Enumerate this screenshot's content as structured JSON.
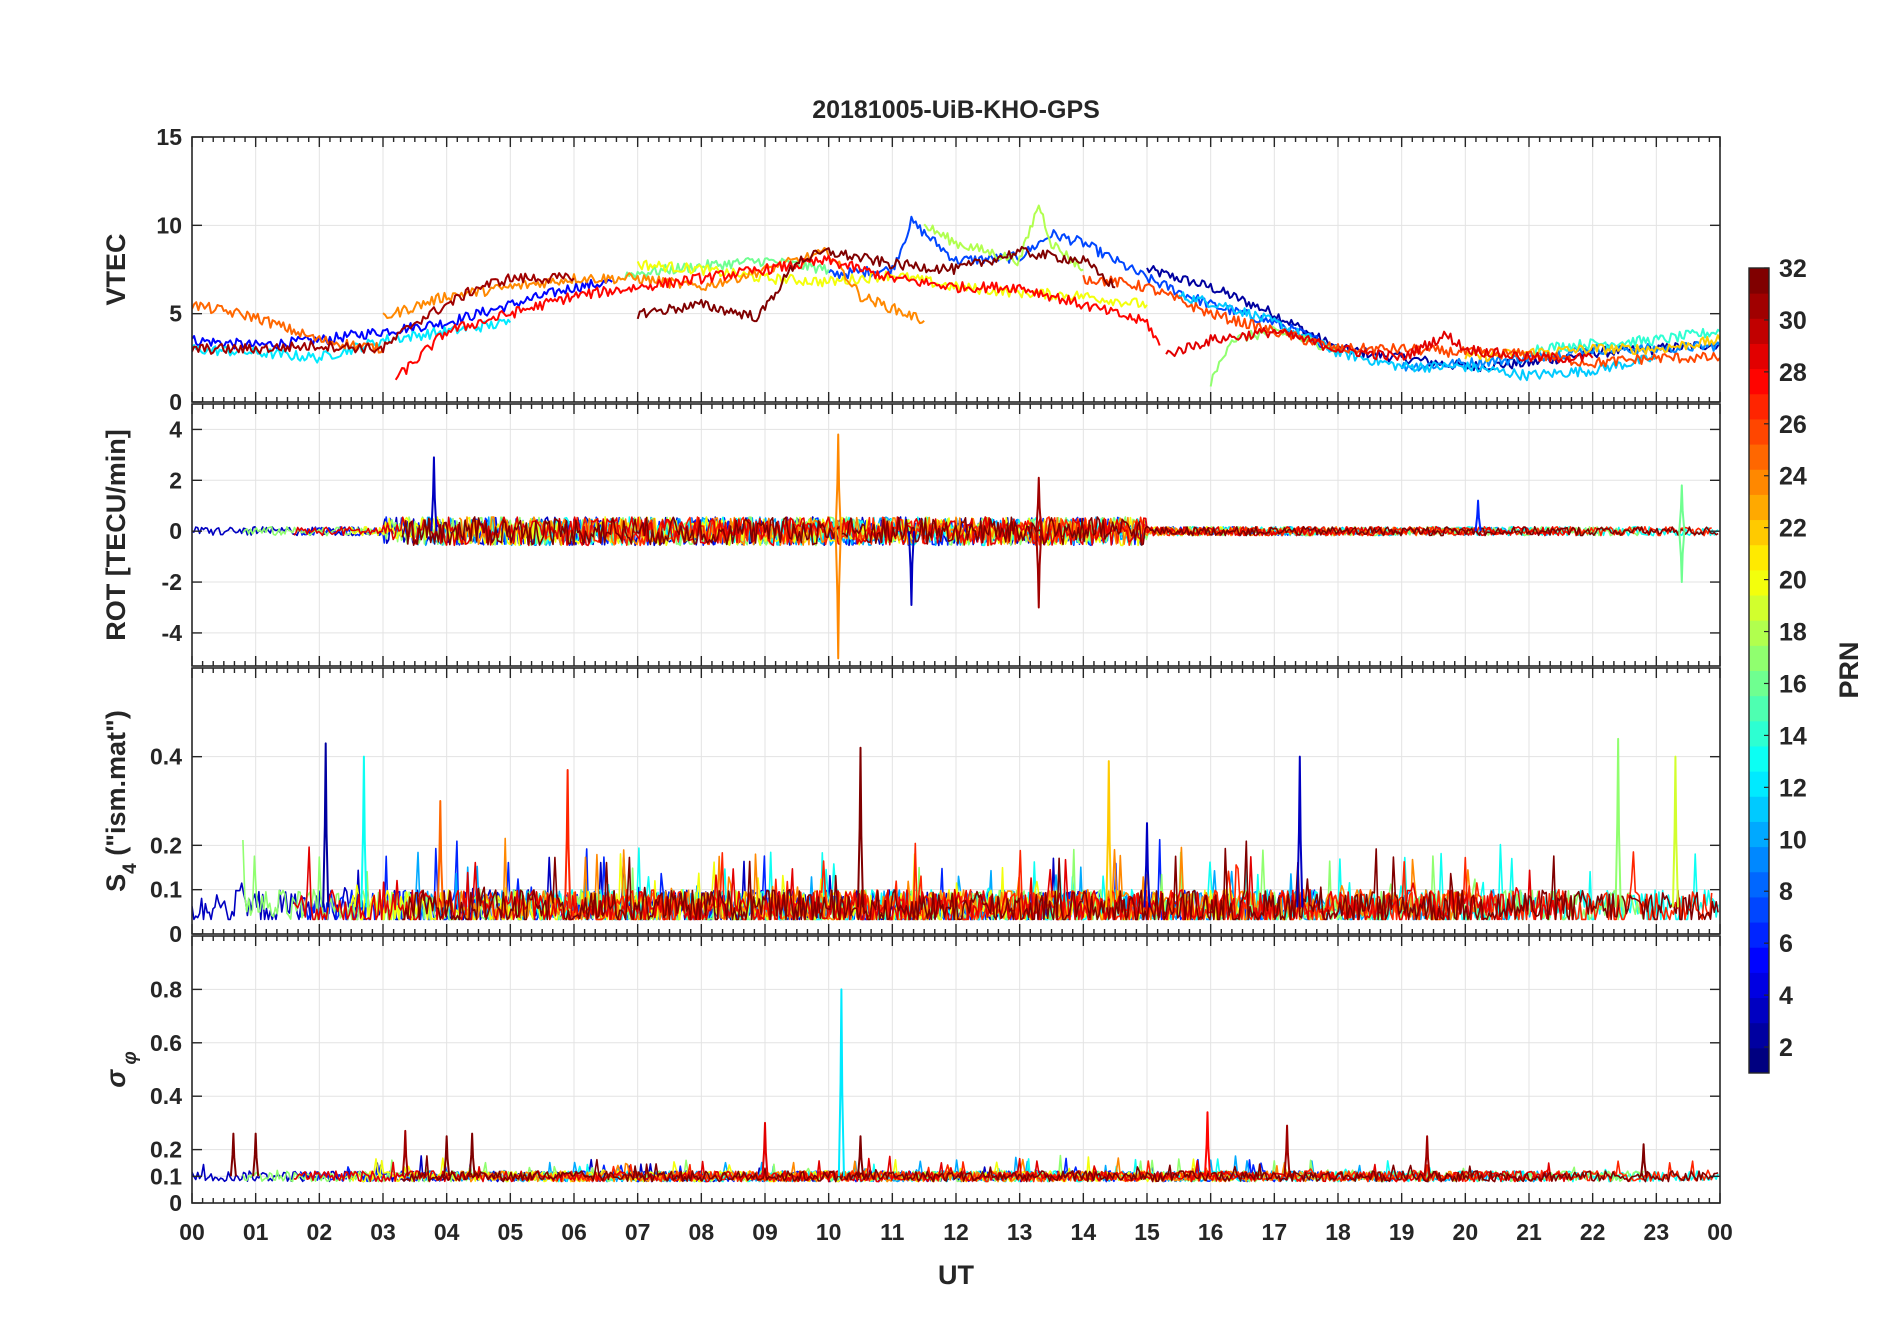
{
  "chart_data": {
    "type": "line",
    "title": "20181005-UiB-KHO-GPS",
    "xlabel": "UT",
    "xlim": [
      0,
      24
    ],
    "x_tick_labels": [
      "00",
      "01",
      "02",
      "03",
      "04",
      "05",
      "06",
      "07",
      "08",
      "09",
      "10",
      "11",
      "12",
      "13",
      "14",
      "15",
      "16",
      "17",
      "18",
      "19",
      "20",
      "21",
      "22",
      "23",
      "00"
    ],
    "colorbar": {
      "label": "PRN",
      "range": [
        1,
        32
      ],
      "tick_labels": [
        "2",
        "4",
        "6",
        "8",
        "10",
        "12",
        "14",
        "16",
        "18",
        "20",
        "22",
        "24",
        "26",
        "28",
        "30",
        "32"
      ],
      "colormap": "jet"
    },
    "panels": [
      {
        "ylabel": "VTEC",
        "ylim": [
          0,
          15
        ],
        "y_ticks": [
          0,
          5,
          10,
          15
        ],
        "y_tick_labels": [
          "0",
          "5",
          "10",
          "15"
        ],
        "description": "Vertical total electron content per PRN: ~2-5 at 00-04 UT, rising to ~7-10 around 10-14 UT (max ~11 near 13.3 UT), decaying to ~2-3.5 after 18 UT.",
        "series": [
          {
            "prn": 2,
            "points": [
              [
                15.0,
                7.5
              ],
              [
                16.0,
                6.5
              ],
              [
                17.0,
                5.0
              ],
              [
                18.0,
                3.0
              ],
              [
                19.0,
                2.5
              ],
              [
                20.0,
                2.0
              ],
              [
                21.0,
                2.2
              ],
              [
                22.0,
                2.8
              ],
              [
                23.0,
                3.0
              ],
              [
                24.0,
                3.3
              ]
            ]
          },
          {
            "prn": 5,
            "points": [
              [
                0.0,
                3.5
              ],
              [
                1.0,
                3.2
              ],
              [
                2.0,
                3.5
              ],
              [
                3.0,
                4.0
              ],
              [
                4.0,
                4.5
              ],
              [
                5.0,
                5.5
              ],
              [
                6.0,
                6.5
              ],
              [
                6.6,
                6.8
              ]
            ]
          },
          {
            "prn": 7,
            "points": [
              [
                10.0,
                7.2
              ],
              [
                11.0,
                7.5
              ],
              [
                11.3,
                10.2
              ],
              [
                12.0,
                8.0
              ],
              [
                13.0,
                8.2
              ],
              [
                13.5,
                9.5
              ],
              [
                14.0,
                9.0
              ],
              [
                15.0,
                7.0
              ],
              [
                16.0,
                5.5
              ],
              [
                17.0,
                4.5
              ],
              [
                18.0,
                3.0
              ]
            ]
          },
          {
            "prn": 9,
            "points": [
              [
                19.0,
                2.0
              ],
              [
                20.0,
                2.2
              ],
              [
                21.0,
                2.5
              ],
              [
                22.0,
                3.0
              ],
              [
                23.0,
                3.0
              ],
              [
                24.0,
                3.2
              ]
            ]
          },
          {
            "prn": 11,
            "points": [
              [
                15.5,
                6.0
              ],
              [
                16.2,
                5.5
              ],
              [
                17.0,
                4.5
              ],
              [
                18.0,
                2.8
              ],
              [
                19.0,
                2.0
              ],
              [
                20.0,
                2.0
              ],
              [
                21.0,
                1.5
              ],
              [
                22.0,
                1.8
              ],
              [
                23.0,
                2.5
              ]
            ]
          },
          {
            "prn": 12,
            "points": [
              [
                0.0,
                3.0
              ],
              [
                1.0,
                2.8
              ],
              [
                2.0,
                2.5
              ],
              [
                3.0,
                3.5
              ],
              [
                4.0,
                4.0
              ],
              [
                5.0,
                4.5
              ]
            ]
          },
          {
            "prn": 14,
            "points": [
              [
                21.0,
                3.0
              ],
              [
                22.0,
                3.3
              ],
              [
                23.0,
                3.5
              ],
              [
                24.0,
                4.0
              ]
            ]
          },
          {
            "prn": 16,
            "points": [
              [
                6.8,
                7.2
              ],
              [
                7.5,
                7.5
              ],
              [
                8.0,
                7.7
              ],
              [
                9.0,
                8.0
              ],
              [
                10.0,
                7.5
              ]
            ]
          },
          {
            "prn": 17,
            "points": [
              [
                16.0,
                1.0
              ],
              [
                16.3,
                3.5
              ],
              [
                17.0,
                4.0
              ],
              [
                18.0,
                3.0
              ]
            ]
          },
          {
            "prn": 18,
            "points": [
              [
                11.5,
                10.0
              ],
              [
                12.0,
                9.0
              ],
              [
                12.5,
                8.5
              ],
              [
                13.0,
                8.0
              ],
              [
                13.3,
                11.2
              ],
              [
                13.5,
                9.0
              ],
              [
                14.0,
                7.5
              ]
            ]
          },
          {
            "prn": 20,
            "points": [
              [
                7.0,
                7.8
              ],
              [
                8.0,
                7.5
              ],
              [
                9.0,
                7.0
              ],
              [
                10.0,
                6.8
              ],
              [
                11.0,
                7.2
              ],
              [
                12.0,
                6.5
              ],
              [
                13.0,
                6.2
              ],
              [
                14.0,
                6.0
              ],
              [
                15.0,
                5.5
              ]
            ]
          },
          {
            "prn": 22,
            "points": [
              [
                20.0,
                2.5
              ],
              [
                21.0,
                2.8
              ],
              [
                22.0,
                3.0
              ],
              [
                23.0,
                3.0
              ],
              [
                24.0,
                3.5
              ]
            ]
          },
          {
            "prn": 24,
            "points": [
              [
                3.0,
                4.8
              ],
              [
                4.0,
                6.0
              ],
              [
                5.0,
                6.5
              ],
              [
                6.0,
                7.0
              ],
              [
                7.0,
                7.0
              ],
              [
                8.0,
                6.5
              ],
              [
                9.0,
                7.5
              ],
              [
                10.0,
                8.5
              ],
              [
                10.5,
                6.0
              ],
              [
                11.5,
                4.6
              ]
            ]
          },
          {
            "prn": 25,
            "points": [
              [
                0.0,
                5.5
              ],
              [
                1.0,
                4.8
              ],
              [
                2.0,
                3.5
              ],
              [
                3.0,
                3.0
              ]
            ]
          },
          {
            "prn": 26,
            "points": [
              [
                14.0,
                7.0
              ],
              [
                14.5,
                6.8
              ],
              [
                15.0,
                6.5
              ],
              [
                16.0,
                5.0
              ],
              [
                17.0,
                4.0
              ],
              [
                18.0,
                3.0
              ],
              [
                19.0,
                3.0
              ],
              [
                20.0,
                2.8
              ],
              [
                21.0,
                2.7
              ],
              [
                22.0,
                2.2
              ],
              [
                23.0,
                2.5
              ],
              [
                24.0,
                2.5
              ]
            ]
          },
          {
            "prn": 28,
            "points": [
              [
                3.2,
                1.3
              ],
              [
                4.0,
                4.0
              ],
              [
                5.0,
                5.0
              ],
              [
                6.0,
                6.0
              ],
              [
                7.0,
                6.5
              ],
              [
                8.0,
                7.0
              ],
              [
                9.0,
                7.5
              ],
              [
                10.0,
                8.0
              ],
              [
                11.0,
                7.0
              ],
              [
                12.0,
                6.5
              ],
              [
                13.0,
                6.5
              ],
              [
                14.0,
                5.5
              ],
              [
                15.0,
                4.5
              ],
              [
                15.2,
                3.2
              ]
            ]
          },
          {
            "prn": 29,
            "points": [
              [
                15.3,
                2.7
              ],
              [
                16.0,
                3.5
              ],
              [
                17.0,
                4.0
              ],
              [
                18.0,
                3.0
              ],
              [
                19.0,
                2.5
              ],
              [
                19.7,
                3.8
              ],
              [
                20.0,
                3.0
              ],
              [
                21.0,
                2.5
              ],
              [
                22.0,
                2.5
              ]
            ]
          },
          {
            "prn": 31,
            "points": [
              [
                0.0,
                3.0
              ],
              [
                1.0,
                3.0
              ],
              [
                2.0,
                3.2
              ],
              [
                3.0,
                3.0
              ],
              [
                3.5,
                4.5
              ],
              [
                4.0,
                5.5
              ],
              [
                4.5,
                6.5
              ],
              [
                5.0,
                7.0
              ],
              [
                6.0,
                7.0
              ]
            ]
          },
          {
            "prn": 32,
            "points": [
              [
                7.0,
                5.0
              ],
              [
                8.0,
                5.5
              ],
              [
                8.9,
                4.8
              ],
              [
                9.5,
                8.0
              ],
              [
                10.0,
                8.5
              ],
              [
                11.0,
                7.8
              ],
              [
                12.0,
                7.5
              ],
              [
                13.0,
                8.5
              ],
              [
                14.0,
                8.0
              ],
              [
                14.5,
                6.5
              ]
            ]
          }
        ]
      },
      {
        "ylabel": "ROT [TECU/min]",
        "ylim": [
          -5.3,
          5
        ],
        "y_ticks": [
          -4,
          -2,
          0,
          2,
          4
        ],
        "y_tick_labels": [
          "-4",
          "-2",
          "0",
          "2",
          "4"
        ],
        "description": "Rate of TEC per PRN: noisy around 0 (±0.5 typical); spikes up to ~3 near 3.8 UT, ~3.8 and ~-5 near 10.2 UT, ~-3 near 11.3 UT and 13.3 UT, ~1.8 near 23.4 UT.",
        "spikes": [
          {
            "x": 3.8,
            "y": 2.9,
            "prn": 3
          },
          {
            "x": 10.15,
            "y": 3.8,
            "prn": 24
          },
          {
            "x": 10.15,
            "y": -5.0,
            "prn": 24
          },
          {
            "x": 11.3,
            "y": -2.9,
            "prn": 3
          },
          {
            "x": 13.3,
            "y": 2.1,
            "prn": 31
          },
          {
            "x": 13.3,
            "y": -3.0,
            "prn": 31
          },
          {
            "x": 20.2,
            "y": 1.2,
            "prn": 6
          },
          {
            "x": 23.4,
            "y": 1.8,
            "prn": 16
          },
          {
            "x": 23.4,
            "y": -2.0,
            "prn": 16
          }
        ]
      },
      {
        "ylabel": "S4 (\"ism.mat\")",
        "ylim": [
          0,
          0.6
        ],
        "y_ticks": [
          0,
          0.1,
          0.2,
          0.4
        ],
        "y_tick_labels": [
          "0",
          "0.1",
          "0.2",
          "0.4"
        ],
        "description": "Amplitude scintillation index per PRN: background ~0.05-0.1; peaks ~0.43 at 2.1 UT, ~0.42 at 10.5 UT, ~0.4 at 17.4 UT, ~0.44 at 22.4 UT.",
        "peaks": [
          {
            "x": 2.1,
            "y": 0.43,
            "prn": 2
          },
          {
            "x": 2.7,
            "y": 0.4,
            "prn": 13
          },
          {
            "x": 3.9,
            "y": 0.3,
            "prn": 25
          },
          {
            "x": 5.9,
            "y": 0.37,
            "prn": 27
          },
          {
            "x": 10.5,
            "y": 0.42,
            "prn": 32
          },
          {
            "x": 14.4,
            "y": 0.39,
            "prn": 22
          },
          {
            "x": 15.0,
            "y": 0.25,
            "prn": 3
          },
          {
            "x": 17.4,
            "y": 0.4,
            "prn": 3
          },
          {
            "x": 22.4,
            "y": 0.44,
            "prn": 17
          },
          {
            "x": 23.3,
            "y": 0.4,
            "prn": 19
          }
        ]
      },
      {
        "ylabel": "σφ",
        "ylim": [
          0,
          1.0
        ],
        "y_ticks": [
          0,
          0.1,
          0.2,
          0.4,
          0.6,
          0.8
        ],
        "y_tick_labels": [
          "0",
          "0.1",
          "0.2",
          "0.4",
          "0.6",
          "0.8"
        ],
        "description": "Phase scintillation index per PRN: background ~0.1; spike ~0.8 at 10.2 UT, ~0.34 at 15.95 UT.",
        "peaks": [
          {
            "x": 0.65,
            "y": 0.26,
            "prn": 32
          },
          {
            "x": 1.0,
            "y": 0.26,
            "prn": 32
          },
          {
            "x": 3.35,
            "y": 0.27,
            "prn": 31
          },
          {
            "x": 4.0,
            "y": 0.25,
            "prn": 32
          },
          {
            "x": 4.4,
            "y": 0.26,
            "prn": 32
          },
          {
            "x": 9.0,
            "y": 0.3,
            "prn": 29
          },
          {
            "x": 10.2,
            "y": 0.8,
            "prn": 12
          },
          {
            "x": 10.5,
            "y": 0.25,
            "prn": 32
          },
          {
            "x": 15.95,
            "y": 0.34,
            "prn": 28
          },
          {
            "x": 17.2,
            "y": 0.29,
            "prn": 31
          },
          {
            "x": 19.4,
            "y": 0.25,
            "prn": 31
          },
          {
            "x": 22.8,
            "y": 0.22,
            "prn": 32
          }
        ]
      }
    ]
  }
}
